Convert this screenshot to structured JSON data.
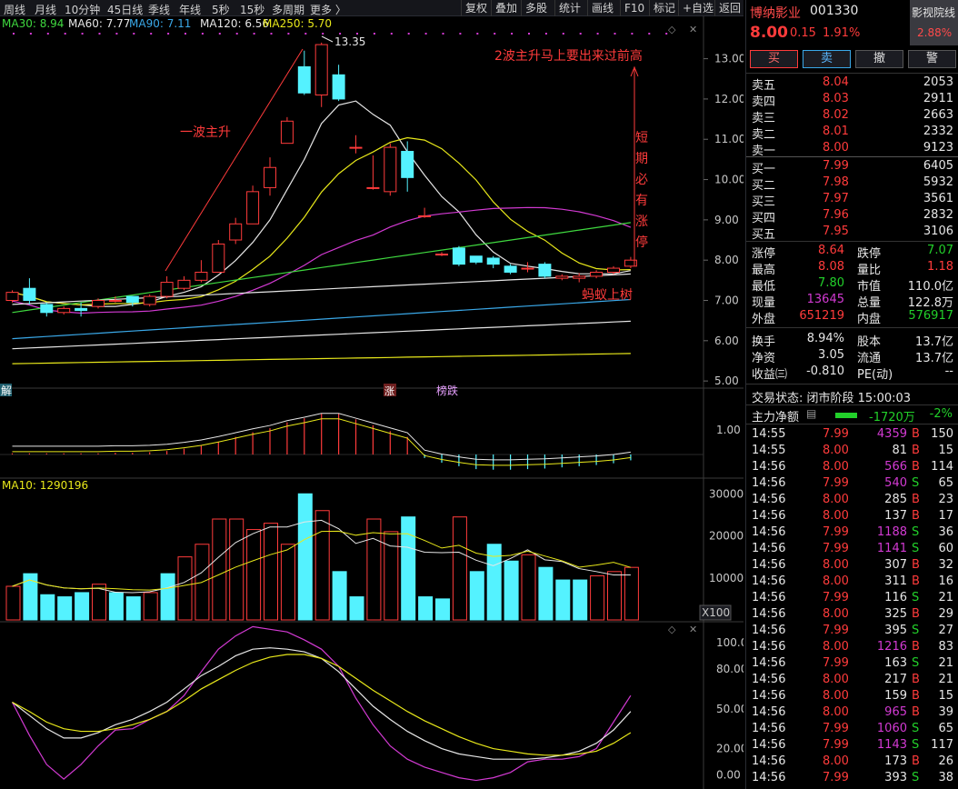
{
  "toolbar": {
    "periods": [
      "周线",
      "月线",
      "10分钟",
      "45日线",
      "季线",
      "年线",
      "5秒",
      "15秒",
      "多周期",
      "更多 〉"
    ],
    "tools": [
      "复权",
      "叠加",
      "多股",
      "统计",
      "画线",
      "F10",
      "标记",
      "+自选",
      "返回"
    ]
  },
  "ma_legend": [
    {
      "label": "MA30: 8.94",
      "color": "#3fd83f"
    },
    {
      "label": "MA60: 7.77",
      "color": "#e6e6e6"
    },
    {
      "label": "MA90: 7.11",
      "color": "#3aa8e8"
    },
    {
      "label": "MA120: 6.56",
      "color": "#e6e6e6"
    },
    {
      "label": "MA250: 5.70",
      "color": "#e8e81a"
    }
  ],
  "annotations": {
    "wave1": "一波主升",
    "wave2": "2波主升马上要出来过前高",
    "short_term": [
      "短",
      "期",
      "必",
      "有",
      "涨",
      "停"
    ],
    "ant": "蚂蚁上树",
    "high_label": "13.35"
  },
  "event_tags": {
    "left": "解",
    "zhang": "涨",
    "bang": "榜跌"
  },
  "vol_legend": "MA10: 1290196",
  "x100": "X100",
  "colors": {
    "up": "#ff3b3b",
    "down": "#54f2ff",
    "bg": "#000000",
    "grid": "#3a3a3a"
  },
  "chart_data": {
    "type": "candlestick",
    "price_axis": {
      "ylim": [
        4.8,
        13.6
      ],
      "ticks": [
        "13.00",
        "12.00",
        "11.00",
        "10.00",
        "9.00",
        "8.00",
        "7.00",
        "6.00",
        "5.00"
      ],
      "tick_values": [
        13,
        12,
        11,
        10,
        9,
        8,
        7,
        6,
        5
      ]
    },
    "candles": [
      {
        "o": 7.0,
        "c": 7.2,
        "h": 7.25,
        "l": 6.95
      },
      {
        "o": 7.3,
        "c": 7.0,
        "h": 7.55,
        "l": 6.9
      },
      {
        "o": 6.9,
        "c": 6.7,
        "h": 6.95,
        "l": 6.6
      },
      {
        "o": 6.7,
        "c": 6.8,
        "h": 6.85,
        "l": 6.65
      },
      {
        "o": 6.8,
        "c": 6.75,
        "h": 6.95,
        "l": 6.6
      },
      {
        "o": 6.85,
        "c": 7.0,
        "h": 7.05,
        "l": 6.8
      },
      {
        "o": 7.0,
        "c": 7.0,
        "h": 7.1,
        "l": 6.95
      },
      {
        "o": 7.1,
        "c": 6.95,
        "h": 7.1,
        "l": 6.85
      },
      {
        "o": 6.9,
        "c": 7.1,
        "h": 7.15,
        "l": 6.85
      },
      {
        "o": 7.1,
        "c": 7.45,
        "h": 7.6,
        "l": 7.05
      },
      {
        "o": 7.3,
        "c": 7.5,
        "h": 7.6,
        "l": 7.25
      },
      {
        "o": 7.5,
        "c": 7.7,
        "h": 8.0,
        "l": 7.45
      },
      {
        "o": 7.7,
        "c": 8.4,
        "h": 8.5,
        "l": 7.7
      },
      {
        "o": 8.5,
        "c": 8.9,
        "h": 9.05,
        "l": 8.4
      },
      {
        "o": 8.9,
        "c": 9.7,
        "h": 9.85,
        "l": 8.9
      },
      {
        "o": 9.8,
        "c": 10.3,
        "h": 10.55,
        "l": 9.6
      },
      {
        "o": 10.9,
        "c": 11.45,
        "h": 11.55,
        "l": 10.9
      },
      {
        "o": 12.8,
        "c": 12.15,
        "h": 13.2,
        "l": 12.1
      },
      {
        "o": 12.1,
        "c": 13.35,
        "h": 13.4,
        "l": 11.8
      },
      {
        "o": 12.6,
        "c": 12.0,
        "h": 12.85,
        "l": 11.95
      },
      {
        "o": 10.8,
        "c": 10.8,
        "h": 11.1,
        "l": 10.65
      },
      {
        "o": 9.8,
        "c": 9.8,
        "h": 10.6,
        "l": 9.75
      },
      {
        "o": 9.7,
        "c": 10.8,
        "h": 10.9,
        "l": 9.6
      },
      {
        "o": 10.7,
        "c": 10.05,
        "h": 10.95,
        "l": 9.7
      },
      {
        "o": 9.1,
        "c": 9.1,
        "h": 9.3,
        "l": 9.05
      },
      {
        "o": 8.15,
        "c": 8.15,
        "h": 8.2,
        "l": 8.1
      },
      {
        "o": 8.3,
        "c": 7.9,
        "h": 8.35,
        "l": 7.85
      },
      {
        "o": 8.1,
        "c": 7.95,
        "h": 8.1,
        "l": 7.9
      },
      {
        "o": 8.05,
        "c": 7.9,
        "h": 8.1,
        "l": 7.8
      },
      {
        "o": 7.85,
        "c": 7.7,
        "h": 7.9,
        "l": 7.65
      },
      {
        "o": 7.8,
        "c": 7.8,
        "h": 7.95,
        "l": 7.7
      },
      {
        "o": 7.9,
        "c": 7.6,
        "h": 7.95,
        "l": 7.55
      },
      {
        "o": 7.55,
        "c": 7.6,
        "h": 7.65,
        "l": 7.5
      },
      {
        "o": 7.55,
        "c": 7.6,
        "h": 7.68,
        "l": 7.45
      },
      {
        "o": 7.6,
        "c": 7.7,
        "h": 7.75,
        "l": 7.55
      },
      {
        "o": 7.7,
        "c": 7.8,
        "h": 7.85,
        "l": 7.65
      },
      {
        "o": 7.85,
        "c": 8.0,
        "h": 8.08,
        "l": 7.8
      }
    ],
    "volume_axis": {
      "ylim": [
        0,
        32000
      ],
      "ticks": [
        "30000",
        "20000",
        "10000"
      ],
      "tick_values": [
        30000,
        20000,
        10000
      ]
    },
    "volume": [
      8000,
      11000,
      6000,
      5500,
      6500,
      8500,
      6500,
      5500,
      6500,
      11000,
      15000,
      18000,
      24000,
      24000,
      21500,
      23000,
      18000,
      30000,
      26000,
      11500,
      5500,
      24000,
      21000,
      24500,
      5500,
      5000,
      24500,
      11500,
      18000,
      14000,
      15500,
      12500,
      9500,
      9500,
      10500,
      11500,
      12500
    ],
    "volume_down": [
      false,
      true,
      true,
      true,
      true,
      false,
      true,
      true,
      false,
      true,
      false,
      false,
      false,
      false,
      false,
      false,
      false,
      true,
      false,
      true,
      true,
      false,
      false,
      true,
      true,
      true,
      false,
      true,
      true,
      true,
      false,
      true,
      true,
      true,
      false,
      false,
      false
    ],
    "macd_axis": {
      "ticks": [
        "1.00"
      ],
      "tick_values": [
        1.0
      ],
      "ylim": [
        -0.4,
        1.3
      ]
    },
    "macd_bars": [
      0.02,
      0.02,
      0.02,
      0.02,
      0.02,
      0.02,
      0.03,
      0.03,
      0.04,
      0.06,
      0.1,
      0.15,
      0.22,
      0.3,
      0.38,
      0.45,
      0.55,
      0.62,
      0.7,
      0.7,
      0.6,
      0.5,
      0.4,
      0.3,
      -0.06,
      -0.14,
      -0.2,
      -0.25,
      -0.26,
      -0.26,
      -0.25,
      -0.24,
      -0.22,
      -0.2,
      -0.18,
      -0.15,
      -0.1
    ],
    "kdj_axis": {
      "ticks": [
        "100.00",
        "80.00",
        "50.00",
        "20.00",
        "0.00"
      ],
      "tick_values": [
        100,
        80,
        50,
        20,
        0
      ],
      "ylim": [
        -5,
        115
      ]
    }
  },
  "stock": {
    "name": "博纳影业",
    "code": "001330",
    "sector": "影视院线",
    "price": "8.00",
    "change": "0.15",
    "pct": "1.91%",
    "sector_pct": "2.88%",
    "buttons": [
      "买",
      "卖",
      "撤",
      "警"
    ],
    "sell": [
      {
        "label": "卖五",
        "price": "8.04",
        "vol": "2053"
      },
      {
        "label": "卖四",
        "price": "8.03",
        "vol": "2911"
      },
      {
        "label": "卖三",
        "price": "8.02",
        "vol": "2663"
      },
      {
        "label": "卖二",
        "price": "8.01",
        "vol": "2332"
      },
      {
        "label": "卖一",
        "price": "8.00",
        "vol": "9123"
      }
    ],
    "buy": [
      {
        "label": "买一",
        "price": "7.99",
        "vol": "6405"
      },
      {
        "label": "买二",
        "price": "7.98",
        "vol": "5932"
      },
      {
        "label": "买三",
        "price": "7.97",
        "vol": "3561"
      },
      {
        "label": "买四",
        "price": "7.96",
        "vol": "2832"
      },
      {
        "label": "买五",
        "price": "7.95",
        "vol": "3106"
      }
    ],
    "stats": [
      {
        "l1": "涨停",
        "v1": "8.64",
        "c1": "red",
        "l2": "跌停",
        "v2": "7.07",
        "c2": "green"
      },
      {
        "l1": "最高",
        "v1": "8.08",
        "c1": "red",
        "l2": "量比",
        "v2": "1.18",
        "c2": "red"
      },
      {
        "l1": "最低",
        "v1": "7.80",
        "c1": "green",
        "l2": "市值",
        "v2": "110.0亿",
        "c2": "white"
      },
      {
        "l1": "现量",
        "v1": "13645",
        "c1": "purple",
        "l2": "总量",
        "v2": "122.8万",
        "c2": "white"
      },
      {
        "l1": "外盘",
        "v1": "651219",
        "c1": "red",
        "l2": "内盘",
        "v2": "576917",
        "c2": "green"
      }
    ],
    "stats2": [
      {
        "l1": "换手",
        "v1": "8.94%",
        "l2": "股本",
        "v2": "13.7亿"
      },
      {
        "l1": "净资",
        "v1": "3.05",
        "l2": "流通",
        "v2": "13.7亿"
      },
      {
        "l1": "收益㈢",
        "v1": "-0.810",
        "l2": "PE(动)",
        "v2": "--"
      }
    ],
    "status": "交易状态: 闭市阶段 15:00:03",
    "flow_label": "主力净额",
    "flow_value": "-1720万",
    "flow_pct": "-2%",
    "ticks": [
      {
        "t": "14:55",
        "p": "7.99",
        "v": "4359",
        "s": "B",
        "n": "150",
        "vc": "purple"
      },
      {
        "t": "14:55",
        "p": "8.00",
        "v": "81",
        "s": "B",
        "n": "15",
        "vc": "white"
      },
      {
        "t": "14:56",
        "p": "8.00",
        "v": "566",
        "s": "B",
        "n": "114",
        "vc": "purple"
      },
      {
        "t": "14:56",
        "p": "7.99",
        "v": "540",
        "s": "S",
        "n": "65",
        "vc": "purple"
      },
      {
        "t": "14:56",
        "p": "8.00",
        "v": "285",
        "s": "B",
        "n": "23",
        "vc": "white"
      },
      {
        "t": "14:56",
        "p": "8.00",
        "v": "137",
        "s": "B",
        "n": "17",
        "vc": "white"
      },
      {
        "t": "14:56",
        "p": "7.99",
        "v": "1188",
        "s": "S",
        "n": "36",
        "vc": "purple"
      },
      {
        "t": "14:56",
        "p": "7.99",
        "v": "1141",
        "s": "S",
        "n": "60",
        "vc": "purple"
      },
      {
        "t": "14:56",
        "p": "8.00",
        "v": "307",
        "s": "B",
        "n": "32",
        "vc": "white"
      },
      {
        "t": "14:56",
        "p": "8.00",
        "v": "311",
        "s": "B",
        "n": "16",
        "vc": "white"
      },
      {
        "t": "14:56",
        "p": "7.99",
        "v": "116",
        "s": "S",
        "n": "21",
        "vc": "white"
      },
      {
        "t": "14:56",
        "p": "8.00",
        "v": "325",
        "s": "B",
        "n": "29",
        "vc": "white"
      },
      {
        "t": "14:56",
        "p": "7.99",
        "v": "395",
        "s": "S",
        "n": "27",
        "vc": "white"
      },
      {
        "t": "14:56",
        "p": "8.00",
        "v": "1216",
        "s": "B",
        "n": "83",
        "vc": "purple"
      },
      {
        "t": "14:56",
        "p": "7.99",
        "v": "163",
        "s": "S",
        "n": "21",
        "vc": "white"
      },
      {
        "t": "14:56",
        "p": "8.00",
        "v": "217",
        "s": "B",
        "n": "21",
        "vc": "white"
      },
      {
        "t": "14:56",
        "p": "8.00",
        "v": "159",
        "s": "B",
        "n": "15",
        "vc": "white"
      },
      {
        "t": "14:56",
        "p": "8.00",
        "v": "965",
        "s": "B",
        "n": "39",
        "vc": "purple"
      },
      {
        "t": "14:56",
        "p": "7.99",
        "v": "1060",
        "s": "S",
        "n": "65",
        "vc": "purple"
      },
      {
        "t": "14:56",
        "p": "7.99",
        "v": "1143",
        "s": "S",
        "n": "117",
        "vc": "purple"
      },
      {
        "t": "14:56",
        "p": "8.00",
        "v": "173",
        "s": "B",
        "n": "26",
        "vc": "white"
      },
      {
        "t": "14:56",
        "p": "7.99",
        "v": "393",
        "s": "S",
        "n": "38",
        "vc": "white"
      }
    ]
  }
}
